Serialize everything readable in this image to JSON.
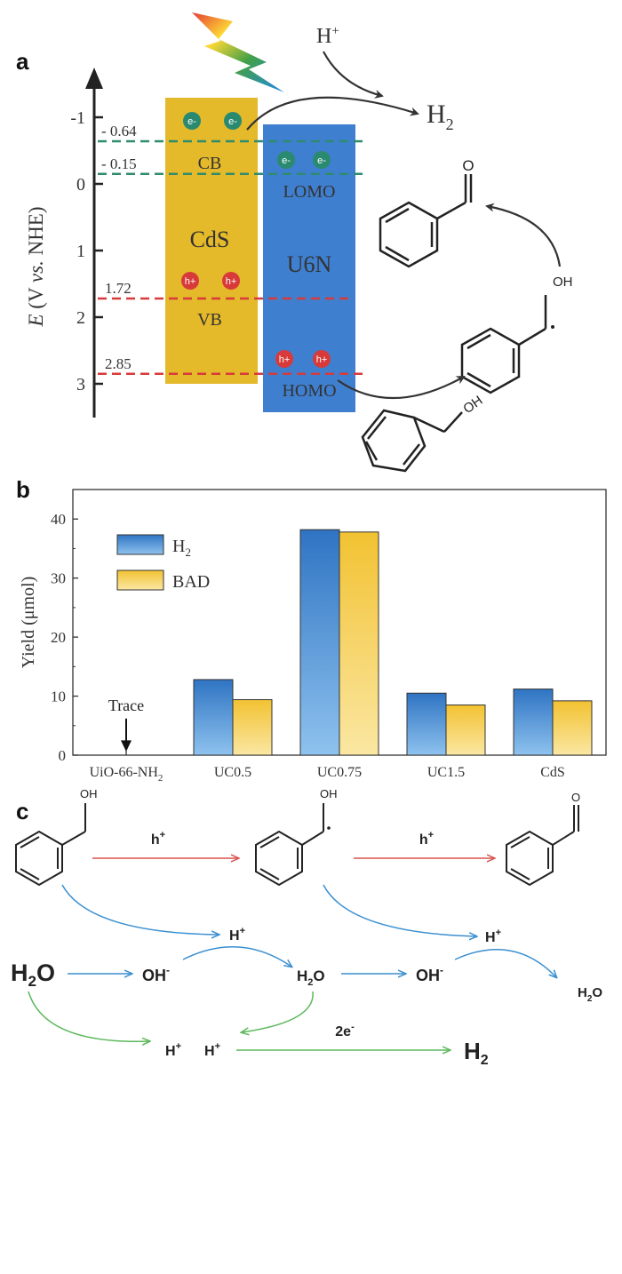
{
  "panel_a": {
    "letter": "a",
    "axis_title": "E (V vs. NHE)",
    "axis_title_prefix": "E",
    "axis_title_rest": " (V ",
    "axis_title_vs": "vs.",
    "axis_title_end": " NHE)",
    "ticks": [
      {
        "label": "-1",
        "value": -1
      },
      {
        "label": "0",
        "value": 0
      },
      {
        "label": "1",
        "value": 1
      },
      {
        "label": "2",
        "value": 2
      },
      {
        "label": "3",
        "value": 3
      }
    ],
    "levels": [
      {
        "label": "- 0.64",
        "value": -0.64,
        "color": "#2e8b6e"
      },
      {
        "label": "- 0.15",
        "value": -0.15,
        "color": "#2e8b6e"
      },
      {
        "label": "1.72",
        "value": 1.72,
        "color": "#d83a3a"
      },
      {
        "label": "2.85",
        "value": 2.85,
        "color": "#d83a3a"
      }
    ],
    "cds": {
      "name": "CdS",
      "cb": "CB",
      "vb": "VB",
      "color": "#e4b92a"
    },
    "u6n": {
      "name": "U6N",
      "lomo": "LOMO",
      "homo": "HOMO",
      "color": "#3f7fcf"
    },
    "electron": "e-",
    "hole": "h+",
    "proton": "H+",
    "hydrogen": "H2",
    "aldehyde_o": "O",
    "radical_oh": "OH",
    "alcohol_oh": "OH"
  },
  "panel_b": {
    "letter": "b",
    "chart_data": {
      "type": "bar",
      "categories": [
        "UiO-66-NH2",
        "UC0.5",
        "UC0.75",
        "UC1.5",
        "CdS"
      ],
      "series": [
        {
          "name": "H2",
          "values": [
            0,
            12.8,
            38.2,
            10.5,
            11.2
          ],
          "color": "#3a7fc9"
        },
        {
          "name": "BAD",
          "values": [
            0,
            9.4,
            37.8,
            8.5,
            9.2
          ],
          "color": "#f2c94c"
        }
      ],
      "ylabel": "Yield (μmol)",
      "yticks": [
        0,
        10,
        20,
        30,
        40
      ],
      "ylim": [
        0,
        45
      ],
      "annotation": "Trace",
      "legend": "top-left"
    }
  },
  "panel_c": {
    "letter": "c",
    "hole": "h+",
    "proton": "H+",
    "water": "H2O",
    "hydroxide": "OH-",
    "two_electrons": "2e-",
    "hydrogen": "H2",
    "oh": "OH",
    "o": "O"
  }
}
